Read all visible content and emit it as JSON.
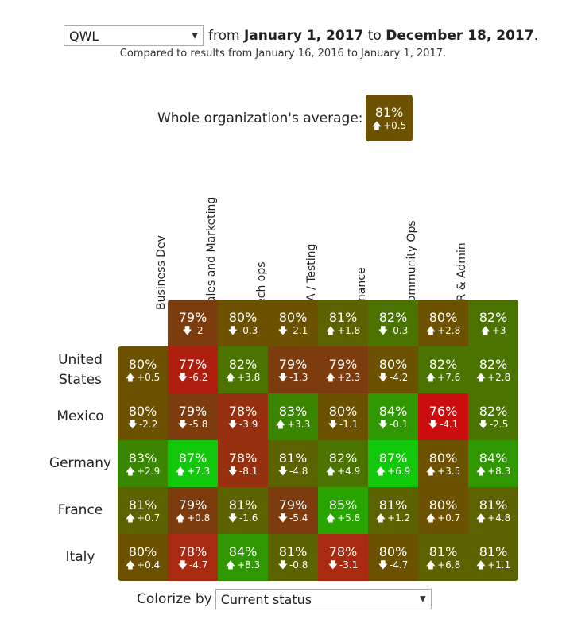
{
  "header": {
    "metric": "QWL",
    "from_word": "from",
    "start_date": "January 1, 2017",
    "to_word": "to",
    "end_date": "December 18, 2017",
    "period": ".",
    "comparison": "Compared to results from January 16, 2016 to January 1, 2017."
  },
  "average": {
    "label": "Whole organization's average:",
    "pct": "81%",
    "delta": "+0.5",
    "direction": "up",
    "color": "#6b5100"
  },
  "columns": [
    "Business Dev",
    "Sales and Marketing",
    "Tech ops",
    "QA / Testing",
    "Finance",
    "Community Ops",
    "HR & Admin"
  ],
  "column_totals": [
    {
      "pct": "79%",
      "delta": "-2",
      "dir": "down",
      "color": "#7d3c0d"
    },
    {
      "pct": "80%",
      "delta": "-0.3",
      "dir": "down",
      "color": "#6b5100"
    },
    {
      "pct": "80%",
      "delta": "-2.1",
      "dir": "down",
      "color": "#6b5100"
    },
    {
      "pct": "81%",
      "delta": "+1.8",
      "dir": "up",
      "color": "#5b6300"
    },
    {
      "pct": "82%",
      "delta": "-0.3",
      "dir": "down",
      "color": "#4a7300"
    },
    {
      "pct": "80%",
      "delta": "+2.8",
      "dir": "up",
      "color": "#6b5100"
    },
    {
      "pct": "82%",
      "delta": "+3",
      "dir": "up",
      "color": "#4a7300"
    }
  ],
  "rows": [
    {
      "label": "United States",
      "total": {
        "pct": "80%",
        "delta": "+0.5",
        "dir": "up",
        "color": "#6b5100"
      },
      "cells": [
        {
          "pct": "77%",
          "delta": "-6.2",
          "dir": "down",
          "color": "#ae1e0e"
        },
        {
          "pct": "82%",
          "delta": "+3.8",
          "dir": "up",
          "color": "#4a7300"
        },
        {
          "pct": "79%",
          "delta": "-1.3",
          "dir": "down",
          "color": "#7d3c0d"
        },
        {
          "pct": "79%",
          "delta": "+2.3",
          "dir": "up",
          "color": "#7d3c0d"
        },
        {
          "pct": "80%",
          "delta": "-4.2",
          "dir": "down",
          "color": "#6b5100"
        },
        {
          "pct": "82%",
          "delta": "+7.6",
          "dir": "up",
          "color": "#4a7300"
        },
        {
          "pct": "82%",
          "delta": "+2.8",
          "dir": "up",
          "color": "#4a7300"
        }
      ]
    },
    {
      "label": "Mexico",
      "total": {
        "pct": "80%",
        "delta": "-2.2",
        "dir": "down",
        "color": "#6b5100"
      },
      "cells": [
        {
          "pct": "79%",
          "delta": "-5.8",
          "dir": "down",
          "color": "#7d3c0d"
        },
        {
          "pct": "78%",
          "delta": "-3.9",
          "dir": "down",
          "color": "#96300e"
        },
        {
          "pct": "83%",
          "delta": "+3.3",
          "dir": "up",
          "color": "#3a8600"
        },
        {
          "pct": "80%",
          "delta": "-1.1",
          "dir": "down",
          "color": "#6b5100"
        },
        {
          "pct": "84%",
          "delta": "-0.1",
          "dir": "down",
          "color": "#2f9800"
        },
        {
          "pct": "76%",
          "delta": "-4.1",
          "dir": "down",
          "color": "#cc0d0d"
        },
        {
          "pct": "82%",
          "delta": "-2.5",
          "dir": "down",
          "color": "#4a7300"
        }
      ]
    },
    {
      "label": "Germany",
      "total": {
        "pct": "83%",
        "delta": "+2.9",
        "dir": "up",
        "color": "#3a8600"
      },
      "cells": [
        {
          "pct": "87%",
          "delta": "+7.3",
          "dir": "up",
          "color": "#12c80a"
        },
        {
          "pct": "78%",
          "delta": "-8.1",
          "dir": "down",
          "color": "#96300e"
        },
        {
          "pct": "81%",
          "delta": "-4.8",
          "dir": "down",
          "color": "#5b6300"
        },
        {
          "pct": "82%",
          "delta": "+4.9",
          "dir": "up",
          "color": "#4a7300"
        },
        {
          "pct": "87%",
          "delta": "+6.9",
          "dir": "up",
          "color": "#12c80a"
        },
        {
          "pct": "80%",
          "delta": "+3.5",
          "dir": "up",
          "color": "#6b5100"
        },
        {
          "pct": "84%",
          "delta": "+8.3",
          "dir": "up",
          "color": "#2f9800"
        }
      ]
    },
    {
      "label": "France",
      "total": {
        "pct": "81%",
        "delta": "+0.7",
        "dir": "up",
        "color": "#5b6300"
      },
      "cells": [
        {
          "pct": "79%",
          "delta": "+0.8",
          "dir": "up",
          "color": "#7d3c0d"
        },
        {
          "pct": "81%",
          "delta": "-1.6",
          "dir": "down",
          "color": "#5b6300"
        },
        {
          "pct": "79%",
          "delta": "-5.4",
          "dir": "down",
          "color": "#7d3c0d"
        },
        {
          "pct": "85%",
          "delta": "+5.8",
          "dir": "up",
          "color": "#27a400"
        },
        {
          "pct": "81%",
          "delta": "+1.2",
          "dir": "up",
          "color": "#5b6300"
        },
        {
          "pct": "80%",
          "delta": "+0.7",
          "dir": "up",
          "color": "#6b5100"
        },
        {
          "pct": "81%",
          "delta": "+4.8",
          "dir": "up",
          "color": "#5b6300"
        }
      ]
    },
    {
      "label": "Italy",
      "total": {
        "pct": "80%",
        "delta": "+0.4",
        "dir": "up",
        "color": "#6b5100"
      },
      "cells": [
        {
          "pct": "78%",
          "delta": "-4.7",
          "dir": "down",
          "color": "#a82a10"
        },
        {
          "pct": "84%",
          "delta": "+8.3",
          "dir": "up",
          "color": "#2f9800"
        },
        {
          "pct": "81%",
          "delta": "-0.8",
          "dir": "down",
          "color": "#5b6300"
        },
        {
          "pct": "78%",
          "delta": "-3.1",
          "dir": "down",
          "color": "#a82a10"
        },
        {
          "pct": "80%",
          "delta": "-4.7",
          "dir": "down",
          "color": "#6b5100"
        },
        {
          "pct": "81%",
          "delta": "+6.8",
          "dir": "up",
          "color": "#5b6300"
        },
        {
          "pct": "81%",
          "delta": "+1.1",
          "dir": "up",
          "color": "#5b6300"
        }
      ]
    }
  ],
  "colorize": {
    "label": "Colorize by",
    "value": "Current status"
  },
  "icons": {
    "up": "arrow-up-icon",
    "down": "arrow-down-icon",
    "dropdown": "chevron-down-icon"
  }
}
